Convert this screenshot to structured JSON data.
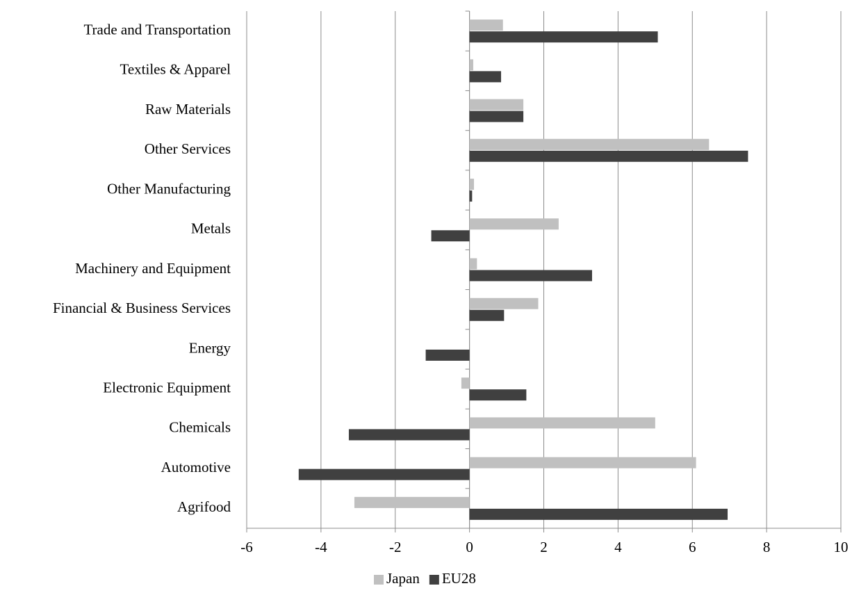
{
  "chart_data": {
    "type": "bar",
    "orientation": "horizontal",
    "categories": [
      "Trade and Transportation",
      "Textiles & Apparel",
      "Raw Materials",
      "Other Services",
      "Other Manufacturing",
      "Metals",
      "Machinery and Equipment",
      "Financial & Business Services",
      "Energy",
      "Electronic Equipment",
      "Chemicals",
      "Automotive",
      "Agrifood"
    ],
    "series": [
      {
        "name": "Japan",
        "color": "#c0c0c0",
        "values": [
          0.9,
          0.1,
          1.45,
          6.45,
          0.12,
          2.4,
          0.2,
          1.85,
          0.0,
          -0.22,
          5.0,
          6.1,
          -3.1
        ]
      },
      {
        "name": "EU28",
        "color": "#404040",
        "values": [
          5.07,
          0.85,
          1.45,
          7.5,
          0.07,
          -1.03,
          3.3,
          0.93,
          -1.18,
          1.53,
          -3.25,
          -4.6,
          6.95
        ]
      }
    ],
    "xlim": [
      -6,
      10
    ],
    "xticks": [
      "-6",
      "-4",
      "-2",
      "0",
      "2",
      "4",
      "6",
      "8",
      "10"
    ],
    "title": "",
    "xlabel": "",
    "ylabel": "",
    "grid": "vertical",
    "legend": "bottom-center"
  }
}
